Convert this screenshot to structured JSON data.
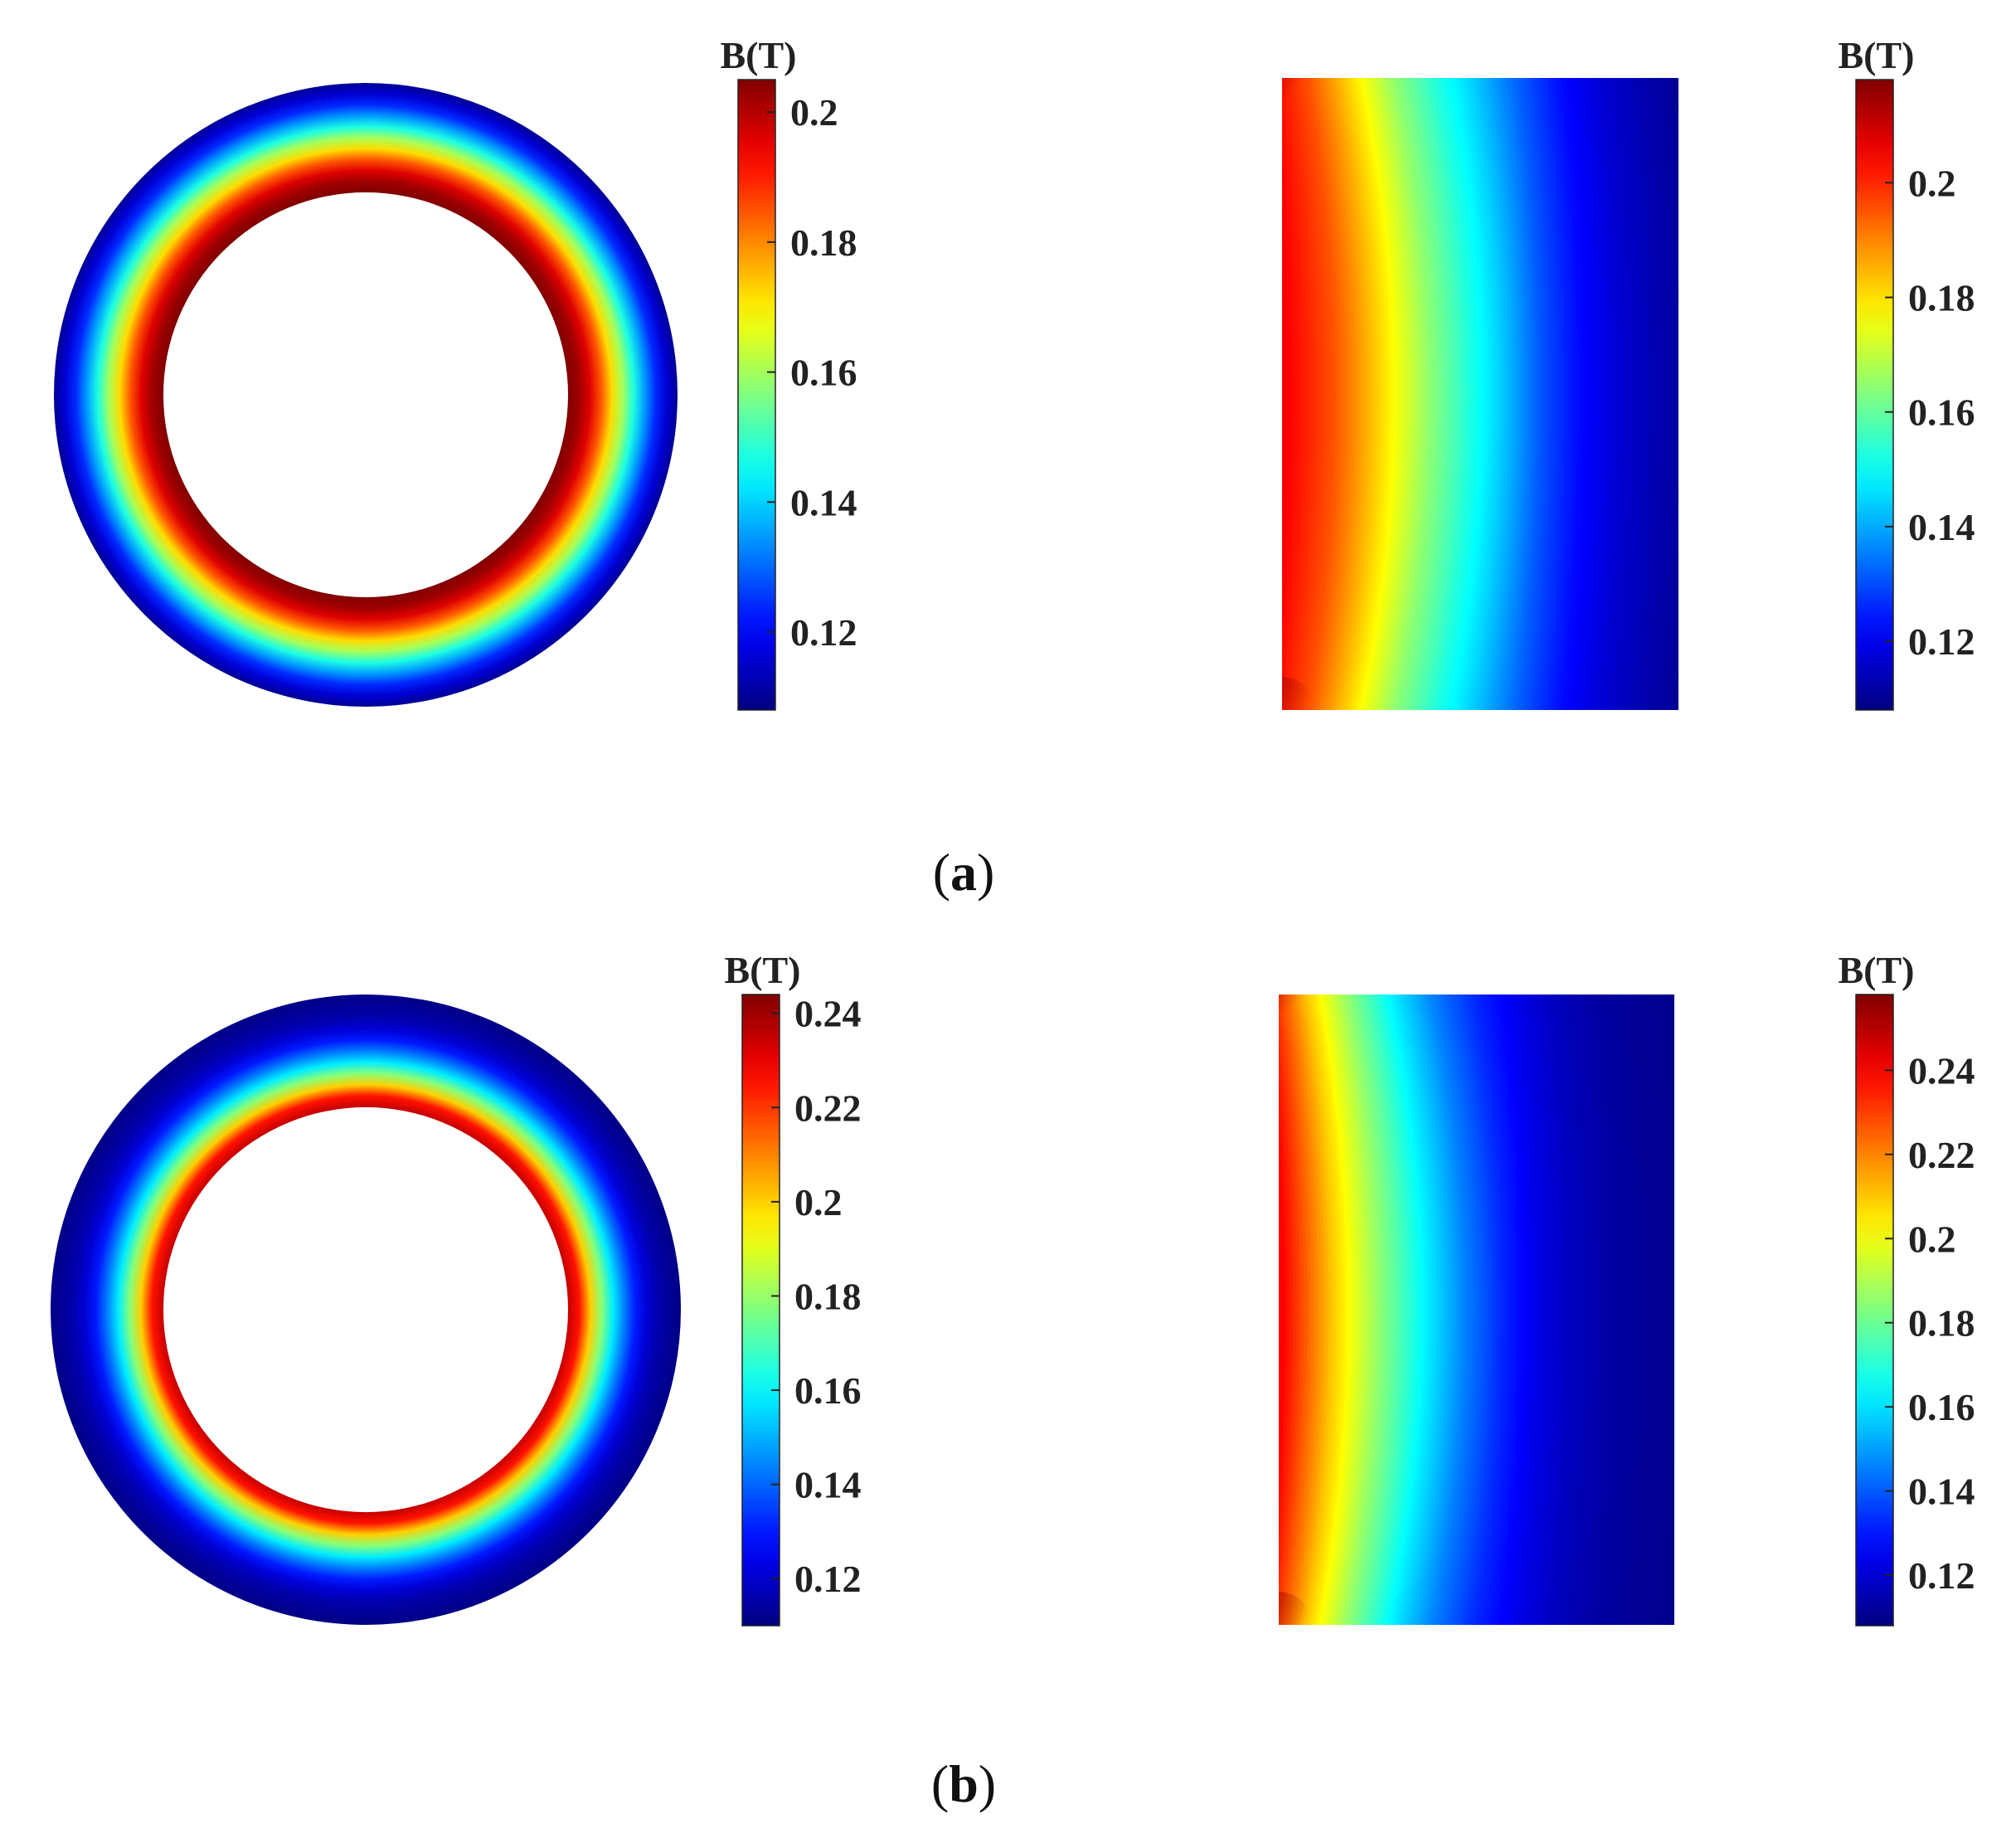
{
  "panels": [
    {
      "label_open": "(",
      "label_letter": "a",
      "label_close": ")"
    },
    {
      "label_open": "(",
      "label_letter": "b",
      "label_close": ")"
    }
  ],
  "colormap": "jet",
  "chart_data": [
    {
      "type": "heatmap",
      "panel": "a",
      "view": "ring cross-section",
      "colorbar_title": "B(T)",
      "clim": [
        0.108,
        0.205
      ],
      "colorbar_ticks": [
        0.12,
        0.14,
        0.16,
        0.18,
        0.2
      ],
      "colorbar_tick_labels": [
        "0.12",
        "0.14",
        "0.16",
        "0.18",
        "0.2"
      ],
      "field_profile": {
        "position": [
          0,
          0.1,
          0.2,
          0.3,
          0.4,
          0.5,
          0.6,
          0.7,
          0.8,
          0.9,
          1.0
        ],
        "B": [
          0.205,
          0.202,
          0.196,
          0.185,
          0.172,
          0.16,
          0.147,
          0.135,
          0.124,
          0.116,
          0.11
        ]
      }
    },
    {
      "type": "heatmap",
      "panel": "a",
      "view": "axial rectangular section",
      "colorbar_title": "B(T)",
      "clim": [
        0.108,
        0.218
      ],
      "colorbar_ticks": [
        0.12,
        0.14,
        0.16,
        0.18,
        0.2
      ],
      "colorbar_tick_labels": [
        "0.12",
        "0.14",
        "0.16",
        "0.18",
        "0.2"
      ],
      "field_profile": {
        "position": [
          0,
          0.1,
          0.2,
          0.3,
          0.4,
          0.5,
          0.6,
          0.7,
          0.8,
          0.9,
          1.0
        ],
        "B": [
          0.205,
          0.195,
          0.18,
          0.165,
          0.153,
          0.143,
          0.132,
          0.123,
          0.117,
          0.113,
          0.11
        ]
      }
    },
    {
      "type": "heatmap",
      "panel": "b",
      "view": "ring cross-section",
      "colorbar_title": "B(T)",
      "clim": [
        0.11,
        0.244
      ],
      "colorbar_ticks": [
        0.12,
        0.14,
        0.16,
        0.18,
        0.2,
        0.22,
        0.24
      ],
      "colorbar_tick_labels": [
        "0.12",
        "0.14",
        "0.16",
        "0.18",
        "0.2",
        "0.22",
        "0.24"
      ],
      "field_profile": {
        "position": [
          0,
          0.1,
          0.2,
          0.3,
          0.4,
          0.5,
          0.6,
          0.7,
          0.8,
          0.9,
          1.0
        ],
        "B": [
          0.235,
          0.225,
          0.2,
          0.178,
          0.158,
          0.143,
          0.13,
          0.121,
          0.116,
          0.113,
          0.111
        ]
      }
    },
    {
      "type": "heatmap",
      "panel": "b",
      "view": "axial rectangular section",
      "colorbar_title": "B(T)",
      "clim": [
        0.108,
        0.258
      ],
      "colorbar_ticks": [
        0.12,
        0.14,
        0.16,
        0.18,
        0.2,
        0.22,
        0.24
      ],
      "colorbar_tick_labels": [
        "0.12",
        "0.14",
        "0.16",
        "0.18",
        "0.2",
        "0.22",
        "0.24"
      ],
      "field_profile": {
        "position": [
          0,
          0.1,
          0.2,
          0.3,
          0.4,
          0.5,
          0.6,
          0.7,
          0.8,
          0.9,
          1.0
        ],
        "B": [
          0.24,
          0.21,
          0.185,
          0.163,
          0.146,
          0.133,
          0.124,
          0.117,
          0.113,
          0.111,
          0.11
        ]
      }
    }
  ]
}
